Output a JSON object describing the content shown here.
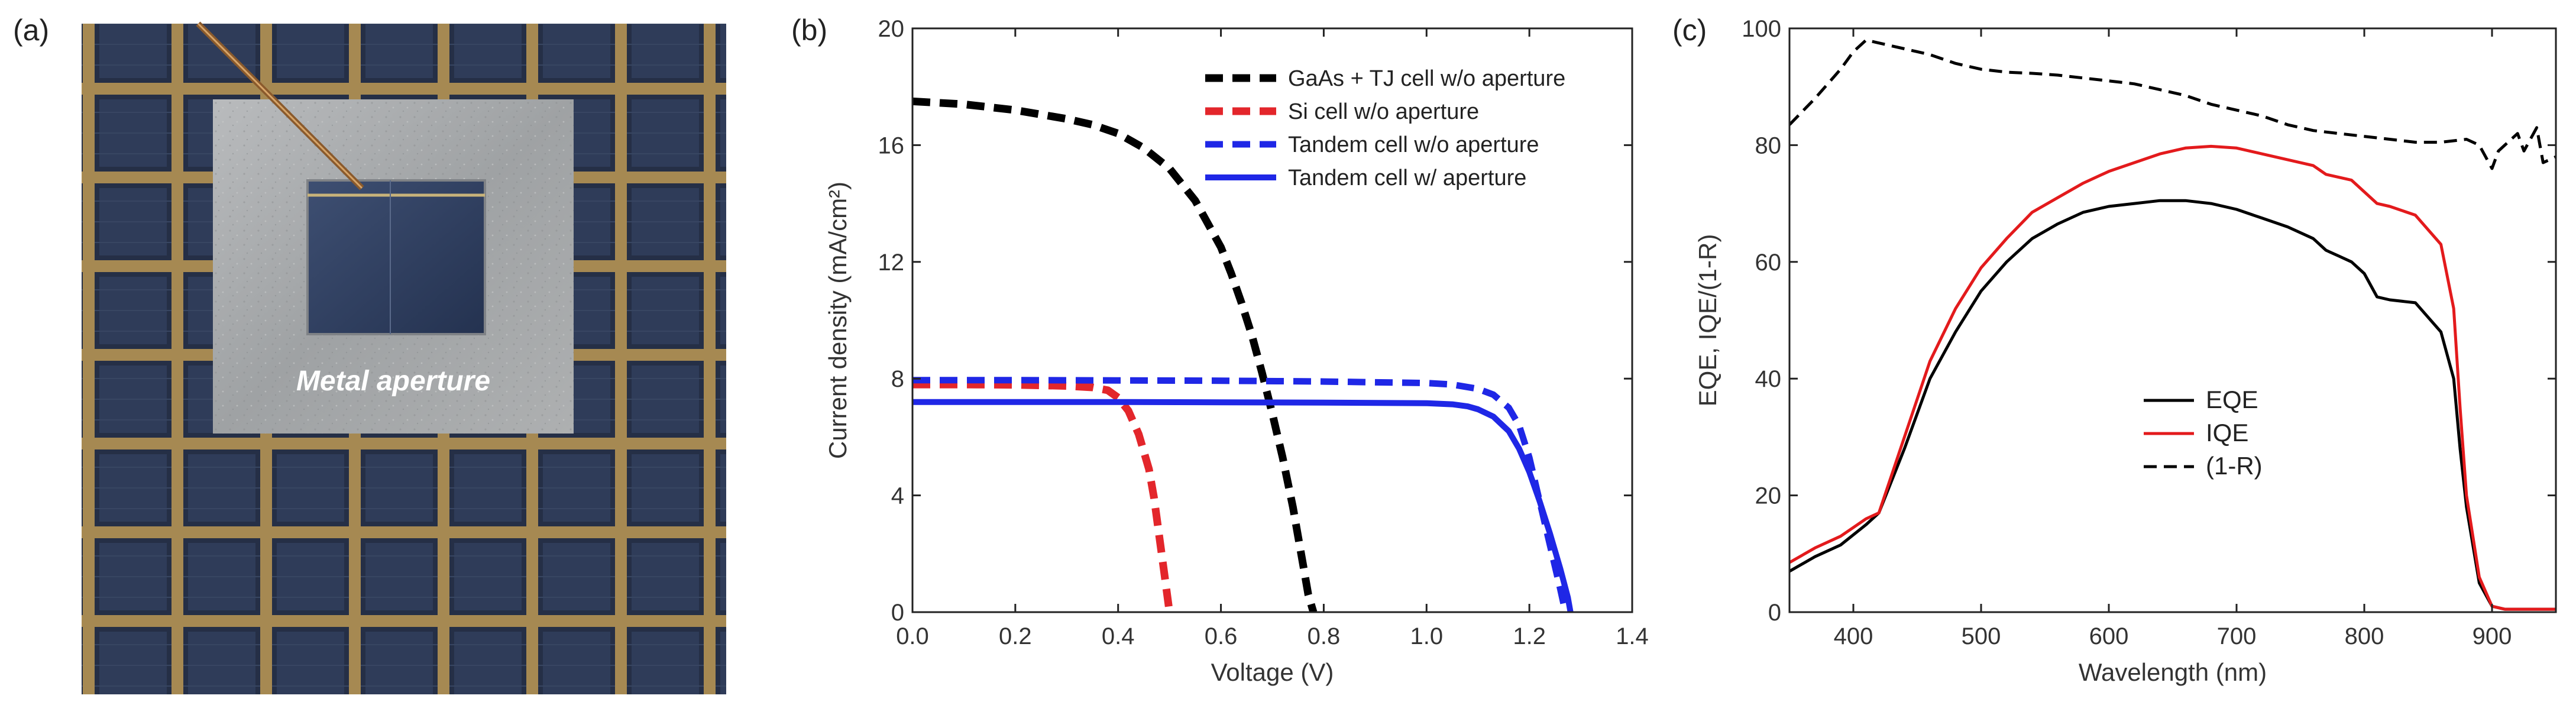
{
  "panels": {
    "a": {
      "label": "(a)",
      "photo_caption": "Metal aperture"
    },
    "b": {
      "label": "(b)"
    },
    "c": {
      "label": "(c)"
    }
  },
  "colors": {
    "black": "#000000",
    "red": "#e3262b",
    "blue": "#1f27e6",
    "iqe_red": "#e31a1c"
  },
  "chart_data": [
    {
      "panel": "b",
      "type": "line",
      "title": "",
      "xlabel": "Voltage (V)",
      "ylabel": "Current density (mA/cm²)",
      "xlim": [
        0.0,
        1.4
      ],
      "ylim": [
        0,
        20
      ],
      "xticks": [
        "0.0",
        "0.2",
        "0.4",
        "0.6",
        "0.8",
        "1.0",
        "1.2",
        "1.4"
      ],
      "yticks": [
        "0",
        "4",
        "8",
        "12",
        "16",
        "20"
      ],
      "legend_position": "top-right",
      "series": [
        {
          "name": "GaAs + TJ cell w/o aperture",
          "style": "dashed",
          "color": "#000000",
          "x": [
            0.0,
            0.05,
            0.1,
            0.15,
            0.2,
            0.25,
            0.3,
            0.35,
            0.4,
            0.45,
            0.5,
            0.55,
            0.6,
            0.62,
            0.64,
            0.66,
            0.68,
            0.7,
            0.72,
            0.74,
            0.75,
            0.76,
            0.77,
            0.78
          ],
          "y": [
            17.5,
            17.45,
            17.4,
            17.3,
            17.2,
            17.05,
            16.9,
            16.7,
            16.4,
            15.9,
            15.2,
            14.1,
            12.5,
            11.6,
            10.6,
            9.5,
            8.2,
            6.8,
            5.3,
            3.6,
            2.6,
            1.6,
            0.6,
            0.0
          ]
        },
        {
          "name": "Si cell w/o aperture",
          "style": "dashed",
          "color": "#e3262b",
          "x": [
            0.0,
            0.1,
            0.2,
            0.3,
            0.35,
            0.38,
            0.4,
            0.42,
            0.44,
            0.46,
            0.47,
            0.48,
            0.49,
            0.5
          ],
          "y": [
            7.8,
            7.8,
            7.79,
            7.75,
            7.7,
            7.6,
            7.35,
            6.9,
            6.1,
            4.9,
            3.9,
            2.6,
            1.3,
            0.0
          ]
        },
        {
          "name": "Tandem cell w/o aperture",
          "style": "dashed",
          "color": "#1f27e6",
          "x": [
            0.0,
            0.2,
            0.4,
            0.6,
            0.8,
            1.0,
            1.05,
            1.1,
            1.13,
            1.16,
            1.18,
            1.2,
            1.22,
            1.24,
            1.26,
            1.27
          ],
          "y": [
            7.95,
            7.95,
            7.94,
            7.93,
            7.9,
            7.85,
            7.8,
            7.65,
            7.45,
            7.0,
            6.4,
            5.3,
            3.8,
            2.3,
            0.8,
            0.0
          ]
        },
        {
          "name": "Tandem cell w/ aperture",
          "style": "solid",
          "color": "#1f27e6",
          "x": [
            0.0,
            0.2,
            0.4,
            0.6,
            0.8,
            1.0,
            1.05,
            1.08,
            1.1,
            1.13,
            1.16,
            1.18,
            1.2,
            1.22,
            1.24,
            1.26,
            1.275,
            1.28
          ],
          "y": [
            7.2,
            7.2,
            7.2,
            7.19,
            7.18,
            7.16,
            7.12,
            7.05,
            6.95,
            6.7,
            6.2,
            5.6,
            4.8,
            3.8,
            2.7,
            1.5,
            0.5,
            0.0
          ]
        }
      ]
    },
    {
      "panel": "c",
      "type": "line",
      "title": "",
      "xlabel": "Wavelength (nm)",
      "ylabel": "EQE, IQE/(1-R)",
      "xlim": [
        350,
        950
      ],
      "ylim": [
        0,
        100
      ],
      "xticks": [
        "400",
        "500",
        "600",
        "700",
        "800",
        "900"
      ],
      "yticks": [
        "0",
        "20",
        "40",
        "60",
        "80",
        "100"
      ],
      "legend_position": "center-left",
      "series": [
        {
          "name": "EQE",
          "style": "solid",
          "color": "#000000",
          "x": [
            350,
            370,
            390,
            410,
            420,
            440,
            460,
            480,
            500,
            520,
            540,
            560,
            580,
            600,
            620,
            640,
            660,
            680,
            700,
            720,
            740,
            760,
            770,
            780,
            790,
            800,
            810,
            820,
            840,
            860,
            870,
            875,
            880,
            890,
            900,
            910,
            950
          ],
          "y": [
            7,
            9.5,
            11.5,
            15,
            17,
            28,
            40,
            48,
            55,
            60,
            64,
            66.5,
            68.5,
            69.5,
            70,
            70.5,
            70.5,
            70,
            69,
            67.5,
            66,
            64,
            62,
            61,
            60,
            58,
            54,
            53.5,
            53,
            48,
            40,
            28,
            18,
            5,
            1,
            0.5,
            0.5
          ]
        },
        {
          "name": "IQE",
          "style": "solid",
          "color": "#e31a1c",
          "x": [
            350,
            370,
            390,
            410,
            420,
            440,
            460,
            480,
            500,
            520,
            540,
            560,
            580,
            600,
            620,
            640,
            660,
            680,
            700,
            720,
            740,
            760,
            770,
            780,
            790,
            800,
            810,
            820,
            840,
            860,
            870,
            875,
            880,
            890,
            900,
            910,
            950
          ],
          "y": [
            8.5,
            11,
            13,
            16,
            17,
            30,
            43,
            52,
            59,
            64,
            68.5,
            71,
            73.5,
            75.5,
            77,
            78.5,
            79.5,
            79.8,
            79.5,
            78.5,
            77.5,
            76.5,
            75,
            74.5,
            74,
            72,
            70,
            69.5,
            68,
            63,
            52,
            35,
            20,
            6,
            1,
            0.5,
            0.5
          ]
        },
        {
          "name": "(1-R)",
          "style": "dashed",
          "color": "#000000",
          "x": [
            350,
            370,
            390,
            400,
            410,
            420,
            440,
            460,
            480,
            500,
            520,
            540,
            560,
            580,
            600,
            620,
            640,
            660,
            680,
            700,
            720,
            740,
            760,
            780,
            800,
            820,
            840,
            860,
            880,
            890,
            900,
            905,
            910,
            920,
            925,
            935,
            940,
            950
          ],
          "y": [
            83.5,
            88,
            93,
            96,
            98,
            97.5,
            96.5,
            95.5,
            94,
            93,
            92.5,
            92.3,
            92,
            91.5,
            91,
            90.5,
            89.5,
            88.5,
            87,
            86,
            85,
            83.5,
            82.5,
            82,
            81.5,
            81,
            80.5,
            80.5,
            81,
            80,
            76,
            79,
            80,
            82,
            79,
            83,
            77,
            78
          ]
        }
      ]
    }
  ]
}
